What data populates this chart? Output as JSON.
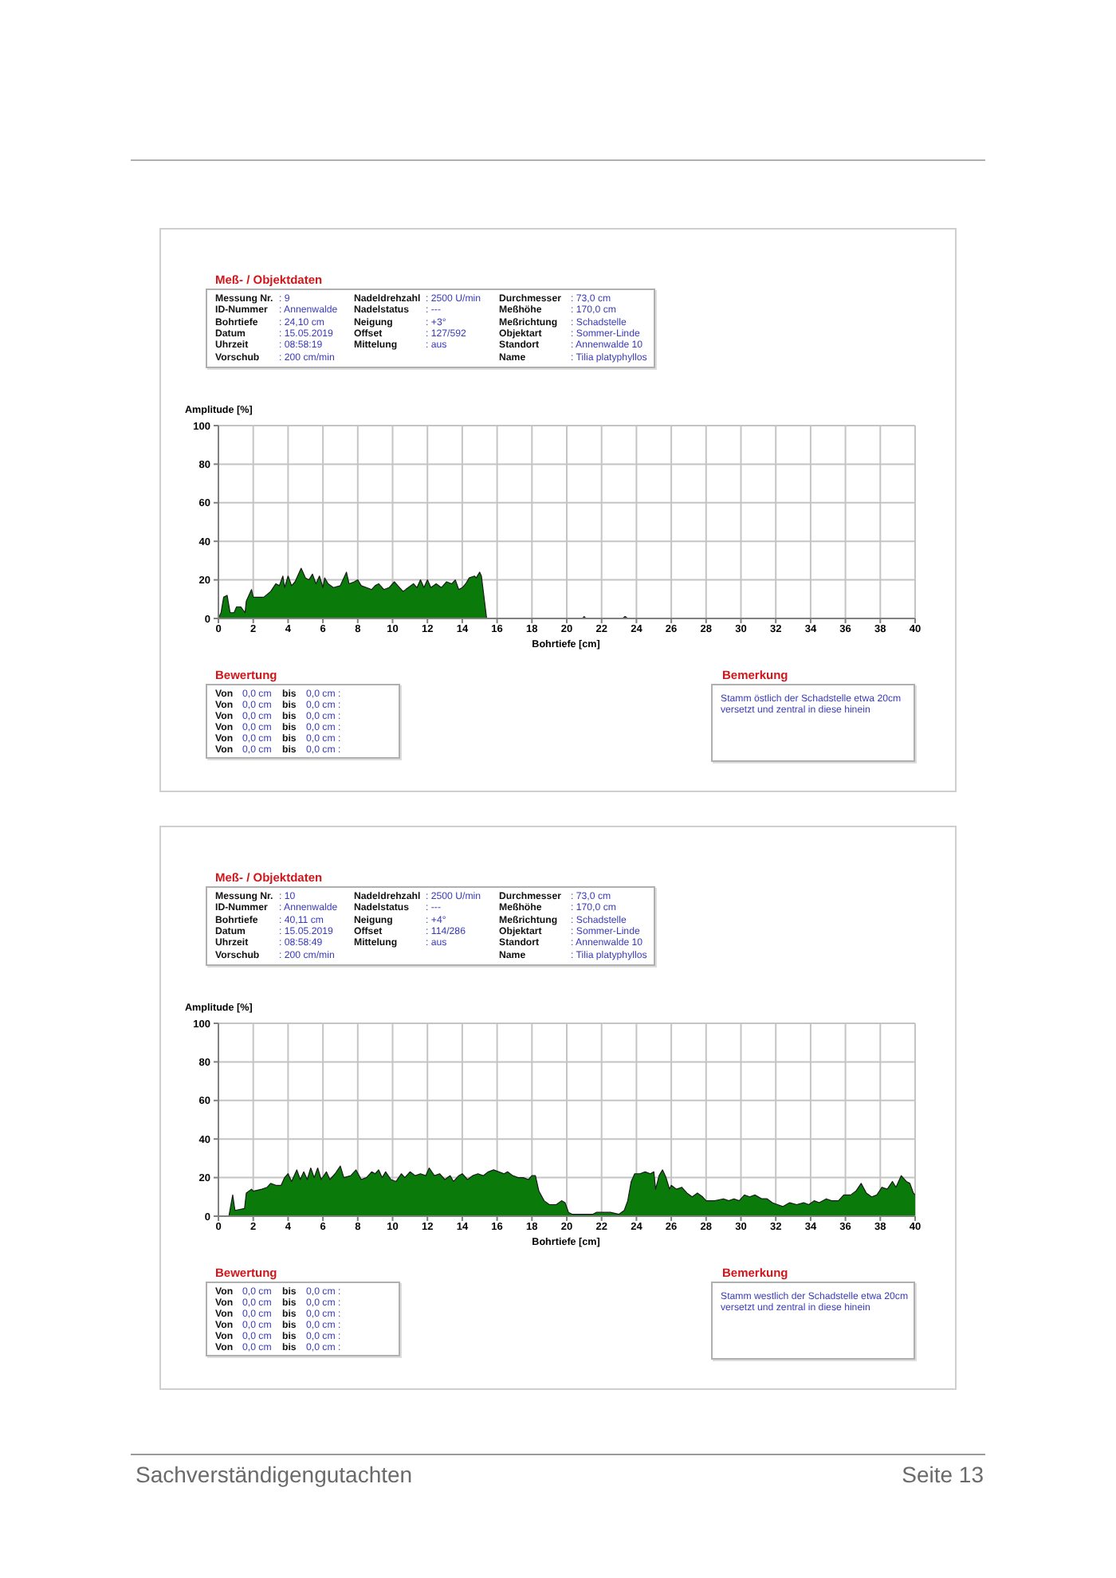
{
  "chart_data": [
    {
      "type": "other",
      "title": "Meß- / Objektdaten",
      "annotations": [
        "Messung Nr.",
        ": 9",
        "Nadeldrehzahl",
        ": 2500 U/min",
        "Durchmesser",
        ": 73,0 cm",
        "ID-Nummer",
        ": Annenwalde",
        "Nadelstatus",
        ": ---",
        "Meßhöhe",
        ": 170,0 cm",
        "Bohrtiefe",
        ": 24,10 cm",
        "Neigung",
        ": +3°",
        "Meßrichtung",
        ": Schadstelle",
        "Datum",
        ": 15.05.2019",
        "Offset",
        ": 127/592",
        "Objektart",
        ": Sommer-Linde",
        "Uhrzeit",
        ": 08:58:19",
        "Mittelung",
        ": aus",
        "Standort",
        ": Annenwalde 10",
        "Vorschub",
        ": 200 cm/min",
        "Name",
        ": Tilia platyphyllos"
      ]
    },
    {
      "type": "area",
      "ylabel": "Amplitude [%]",
      "xlabel": "Bohrtiefe [cm]",
      "color": "#0a7a0a",
      "grid": true,
      "xlim": [
        0,
        40
      ],
      "xticks": [
        0,
        2,
        4,
        6,
        8,
        10,
        12,
        14,
        16,
        18,
        20,
        22,
        24,
        26,
        28,
        30,
        32,
        34,
        36,
        38,
        40
      ],
      "ylim": [
        0,
        100
      ],
      "yticks": [
        0,
        20,
        40,
        60,
        80,
        100
      ],
      "x": [
        0,
        0.15,
        0.3,
        0.5,
        0.67,
        0.9,
        1.04,
        1.28,
        1.53,
        1.6,
        1.9,
        2.0,
        2.6,
        3.0,
        3.3,
        3.5,
        3.7,
        3.8,
        4.0,
        4.2,
        4.4,
        4.75,
        5.0,
        5.2,
        5.4,
        5.6,
        5.8,
        6.0,
        6.1,
        6.3,
        6.6,
        7.0,
        7.35,
        7.5,
        7.8,
        8.0,
        8.2,
        8.5,
        8.8,
        9.0,
        9.2,
        9.5,
        9.8,
        10.1,
        10.3,
        10.6,
        10.9,
        11.2,
        11.4,
        11.6,
        11.8,
        12.0,
        12.2,
        12.5,
        12.8,
        13.1,
        13.4,
        13.6,
        13.8,
        14.0,
        14.2,
        14.4,
        14.7,
        14.8,
        15.0,
        15.1,
        15.4,
        20.9,
        21.0,
        21.1,
        23.2,
        23.35,
        23.5,
        40
      ],
      "values": [
        0,
        3,
        11,
        12,
        3,
        3,
        6,
        6,
        3,
        9,
        15,
        11,
        11,
        14,
        18,
        17,
        22,
        16,
        22,
        17,
        19,
        26,
        21,
        20,
        23,
        18,
        22,
        16,
        21,
        18,
        16,
        17,
        24,
        18,
        19,
        20,
        17,
        16,
        15,
        17,
        18,
        15,
        16,
        19,
        17,
        14,
        16,
        18,
        16,
        20,
        16,
        20,
        16,
        18,
        16,
        19,
        18,
        20,
        15,
        16,
        18,
        21,
        22,
        21,
        24,
        22,
        0,
        0,
        1,
        0,
        0,
        1,
        0,
        0
      ]
    },
    {
      "type": "other",
      "title": "Bewertung",
      "annotations": [
        "Von",
        "0,0 cm",
        "bis",
        "0,0 cm :",
        "Von",
        "0,0 cm",
        "bis",
        "0,0 cm :",
        "Von",
        "0,0 cm",
        "bis",
        "0,0 cm :",
        "Von",
        "0,0 cm",
        "bis",
        "0,0 cm :",
        "Von",
        "0,0 cm",
        "bis",
        "0,0 cm :",
        "Von",
        "0,0 cm",
        "bis",
        "0,0 cm :"
      ]
    },
    {
      "type": "other",
      "title": "Bemerkung",
      "annotations": [
        "Stamm östlich der Schadstelle etwa 20cm versetzt und zentral in diese hinein"
      ]
    },
    {
      "type": "other",
      "title": "Meß- / Objektdaten",
      "annotations": [
        "Messung Nr.",
        ": 10",
        "Nadeldrehzahl",
        ": 2500 U/min",
        "Durchmesser",
        ": 73,0 cm",
        "ID-Nummer",
        ": Annenwalde",
        "Nadelstatus",
        ": ---",
        "Meßhöhe",
        ": 170,0 cm",
        "Bohrtiefe",
        ": 40,11 cm",
        "Neigung",
        ": +4°",
        "Meßrichtung",
        ": Schadstelle",
        "Datum",
        ": 15.05.2019",
        "Offset",
        ": 114/286",
        "Objektart",
        ": Sommer-Linde",
        "Uhrzeit",
        ": 08:58:49",
        "Mittelung",
        ": aus",
        "Standort",
        ": Annenwalde 10",
        "Vorschub",
        ": 200 cm/min",
        "Name",
        ": Tilia platyphyllos"
      ]
    },
    {
      "type": "area",
      "ylabel": "Amplitude [%]",
      "xlabel": "Bohrtiefe [cm]",
      "color": "#0a7a0a",
      "grid": true,
      "xlim": [
        0,
        40
      ],
      "xticks": [
        0,
        2,
        4,
        6,
        8,
        10,
        12,
        14,
        16,
        18,
        20,
        22,
        24,
        26,
        28,
        30,
        32,
        34,
        36,
        38,
        40
      ],
      "ylim": [
        0,
        100
      ],
      "yticks": [
        0,
        20,
        40,
        60,
        80,
        100
      ],
      "x": [
        0,
        0.6,
        0.82,
        0.95,
        1.5,
        1.6,
        1.9,
        2.0,
        2.5,
        2.8,
        3.0,
        3.3,
        3.6,
        3.8,
        4.0,
        4.2,
        4.5,
        4.7,
        4.9,
        5.1,
        5.3,
        5.5,
        5.7,
        5.9,
        6.2,
        6.4,
        6.7,
        7.0,
        7.2,
        7.6,
        7.9,
        8.2,
        8.5,
        8.8,
        9.0,
        9.2,
        9.4,
        9.6,
        9.9,
        10.2,
        10.5,
        10.7,
        11.0,
        11.3,
        11.6,
        11.9,
        12.1,
        12.4,
        12.7,
        13.0,
        13.3,
        13.5,
        13.8,
        14.0,
        14.3,
        14.6,
        14.9,
        15.2,
        15.5,
        15.8,
        16.1,
        16.4,
        16.6,
        16.9,
        17.2,
        17.5,
        17.8,
        18.0,
        18.2,
        18.4,
        18.7,
        19.0,
        19.4,
        19.7,
        19.9,
        20.1,
        20.3,
        21.5,
        21.7,
        22.0,
        22.5,
        23.0,
        23.3,
        23.5,
        23.7,
        23.9,
        24.2,
        24.5,
        24.8,
        25.0,
        25.1,
        25.3,
        25.5,
        25.7,
        25.9,
        26.0,
        26.3,
        26.6,
        26.9,
        27.2,
        27.5,
        27.8,
        28.0,
        28.5,
        29.0,
        29.3,
        29.6,
        29.9,
        30.2,
        30.5,
        30.8,
        31.2,
        31.5,
        31.8,
        32.1,
        32.4,
        32.8,
        33.2,
        33.6,
        33.9,
        34.2,
        34.5,
        34.9,
        35.2,
        35.6,
        35.9,
        36.3,
        36.6,
        36.9,
        37.2,
        37.5,
        37.8,
        38.1,
        38.4,
        38.7,
        38.9,
        39.2,
        39.5,
        39.7,
        39.9,
        40
      ],
      "values": [
        0,
        0,
        11,
        3,
        4,
        12,
        14,
        13,
        14,
        15,
        17,
        16,
        16,
        20,
        22,
        18,
        24,
        19,
        23,
        19,
        25,
        20,
        25,
        19,
        23,
        19,
        22,
        26,
        20,
        21,
        24,
        19,
        20,
        23,
        22,
        24,
        20,
        23,
        19,
        18,
        22,
        20,
        23,
        21,
        22,
        21,
        25,
        21,
        22,
        19,
        21,
        18,
        21,
        22,
        19,
        21,
        22,
        21,
        23,
        24,
        23,
        22,
        23,
        21,
        20,
        20,
        19,
        21,
        21,
        13,
        8,
        6,
        6,
        8,
        7,
        2,
        1,
        1,
        2,
        2,
        2,
        1,
        3,
        8,
        18,
        22,
        22,
        23,
        22,
        23,
        14,
        21,
        24,
        20,
        14,
        16,
        14,
        15,
        12,
        10,
        12,
        10,
        8,
        8,
        9,
        8,
        9,
        8,
        11,
        10,
        11,
        9,
        9,
        7,
        6,
        5,
        7,
        6,
        7,
        6,
        8,
        7,
        9,
        8,
        8,
        11,
        11,
        13,
        17,
        12,
        10,
        11,
        15,
        14,
        18,
        15,
        21,
        18,
        17,
        12,
        11
      ]
    },
    {
      "type": "other",
      "title": "Bewertung",
      "annotations": [
        "Von",
        "0,0 cm",
        "bis",
        "0,0 cm :",
        "Von",
        "0,0 cm",
        "bis",
        "0,0 cm :",
        "Von",
        "0,0 cm",
        "bis",
        "0,0 cm :",
        "Von",
        "0,0 cm",
        "bis",
        "0,0 cm :",
        "Von",
        "0,0 cm",
        "bis",
        "0,0 cm :",
        "Von",
        "0,0 cm",
        "bis",
        "0,0 cm :"
      ]
    },
    {
      "type": "other",
      "title": "Bemerkung",
      "annotations": [
        "Stamm westlich der Schadstelle etwa 20cm versetzt und zentral in diese hinein"
      ]
    },
    {
      "type": "other",
      "annotations": [
        "Sachverständigengutachten",
        "Seite 13"
      ]
    }
  ]
}
